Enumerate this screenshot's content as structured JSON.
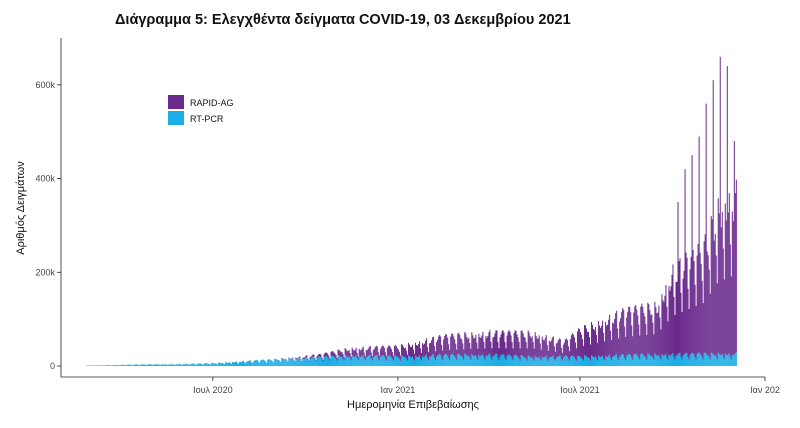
{
  "chart_data": {
    "type": "bar",
    "title": "Διάγραμμα 5: Ελεγχθέντα δείγματα COVID-19, 03 Δεκεμβρίου 2021",
    "xlabel": "Ημερομηνία Επιβεβαίωσης",
    "ylabel": "Αριθμός Δειγμάτων",
    "stacked": true,
    "x_range": [
      "2020-02-26",
      "2021-12-03"
    ],
    "ylim": [
      0,
      700000
    ],
    "y_ticks": [
      0,
      200000,
      400000,
      600000
    ],
    "y_tick_labels": [
      "0",
      "200k",
      "400k",
      "600k"
    ],
    "x_ticks": [
      "2020-07-01",
      "2021-01-01",
      "2021-07-01",
      "2022-01-01"
    ],
    "x_tick_labels": [
      "Ιουλ 2020",
      "Ιαν 2021",
      "Ιουλ 2021",
      "Ιαν 202"
    ],
    "grid": false,
    "legend_position": "top-left",
    "colors": {
      "RAPID-AG": "#6a2a8c",
      "RT-PCR": "#1aaee6"
    },
    "series": [
      {
        "name": "RT-PCR",
        "points": [
          [
            "2020-03-01",
            1000
          ],
          [
            "2020-04-15",
            3000
          ],
          [
            "2020-06-01",
            4000
          ],
          [
            "2020-07-01",
            6000
          ],
          [
            "2020-08-15",
            12000
          ],
          [
            "2020-10-01",
            17000
          ],
          [
            "2020-11-15",
            22000
          ],
          [
            "2021-01-01",
            20000
          ],
          [
            "2021-02-15",
            23000
          ],
          [
            "2021-04-01",
            24000
          ],
          [
            "2021-05-15",
            20000
          ],
          [
            "2021-07-01",
            20000
          ],
          [
            "2021-08-15",
            23000
          ],
          [
            "2021-10-01",
            25000
          ],
          [
            "2021-11-15",
            26000
          ],
          [
            "2021-12-03",
            26000
          ]
        ]
      },
      {
        "name": "RAPID-AG",
        "points": [
          [
            "2020-03-01",
            0
          ],
          [
            "2020-09-01",
            0
          ],
          [
            "2020-10-15",
            5000
          ],
          [
            "2020-11-15",
            15000
          ],
          [
            "2021-01-01",
            20000
          ],
          [
            "2021-02-15",
            38000
          ],
          [
            "2021-04-01",
            45000
          ],
          [
            "2021-05-15",
            48000
          ],
          [
            "2021-06-15",
            30000
          ],
          [
            "2021-07-01",
            55000
          ],
          [
            "2021-08-15",
            90000
          ],
          [
            "2021-09-15",
            100000
          ],
          [
            "2021-10-01",
            170000
          ],
          [
            "2021-11-01",
            220000
          ],
          [
            "2021-11-15",
            300000
          ],
          [
            "2021-12-03",
            330000
          ]
        ]
      }
    ]
  }
}
